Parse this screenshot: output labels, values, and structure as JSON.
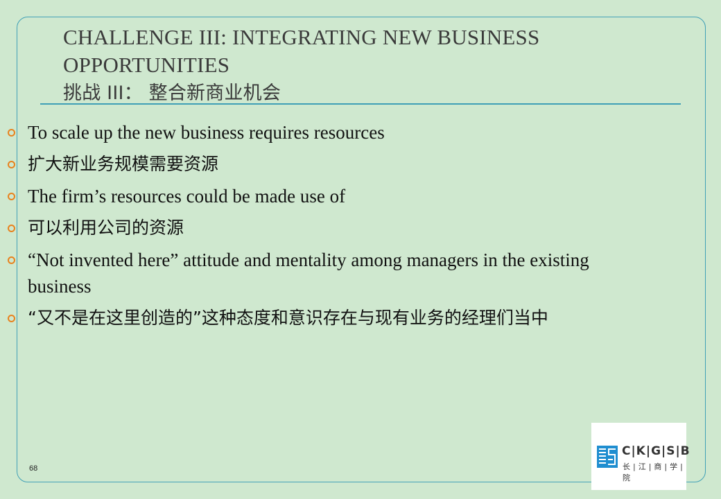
{
  "slide": {
    "title_en": "CHALLENGE III: INTEGRATING NEW BUSINESS OPPORTUNITIES",
    "title_cn": "挑战 III： 整合新商业机会",
    "bullets": [
      {
        "text": "To scale up the new business requires resources",
        "lang": "en"
      },
      {
        "text": "扩大新业务规模需要资源",
        "lang": "cn"
      },
      {
        "text": "The firm’s resources could be made use of",
        "lang": "en"
      },
      {
        "text": " 可以利用公司的资源",
        "lang": "cn"
      },
      {
        "text": "“Not invented here” attitude and mentality among managers in the existing business",
        "lang": "en"
      },
      {
        "text": " “又不是在这里创造的”这种态度和意识存在与现有业务的经理们当中",
        "lang": "cn"
      }
    ],
    "page_number": "68"
  },
  "logo": {
    "brand": "C|K|G|S|B",
    "brand_cn": "长|江|商|学|院",
    "icon": "ckgsb-logo-icon",
    "color": "#1f8ed0"
  },
  "colors": {
    "background": "#cfe8cf",
    "frame": "#3f9fb6",
    "bullet": "#e8821e"
  }
}
